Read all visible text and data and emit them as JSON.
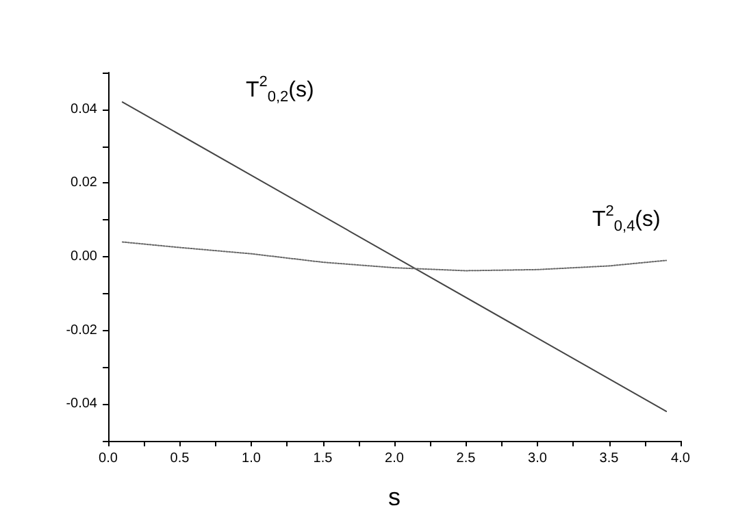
{
  "chart_data": {
    "type": "line",
    "xlabel": "s",
    "xlim": [
      0,
      4
    ],
    "xticks": [
      {
        "value": 0,
        "label": "0.0"
      },
      {
        "value": 0.25,
        "label": null
      },
      {
        "value": 0.5,
        "label": "0.5"
      },
      {
        "value": 0.75,
        "label": null
      },
      {
        "value": 1,
        "label": "1.0"
      },
      {
        "value": 1.25,
        "label": null
      },
      {
        "value": 1.5,
        "label": "1.5"
      },
      {
        "value": 1.75,
        "label": null
      },
      {
        "value": 2,
        "label": "2.0"
      },
      {
        "value": 2.25,
        "label": null
      },
      {
        "value": 2.5,
        "label": "2.5"
      },
      {
        "value": 2.75,
        "label": null
      },
      {
        "value": 3,
        "label": "3.0"
      },
      {
        "value": 3.25,
        "label": null
      },
      {
        "value": 3.5,
        "label": "3.5"
      },
      {
        "value": 3.75,
        "label": null
      },
      {
        "value": 4,
        "label": "4.0"
      }
    ],
    "ylim": [
      -0.05,
      0.05
    ],
    "yticks": [
      {
        "value": -0.05,
        "label": null
      },
      {
        "value": -0.04,
        "label": "-0.04"
      },
      {
        "value": -0.03,
        "label": null
      },
      {
        "value": -0.02,
        "label": "-0.02"
      },
      {
        "value": -0.01,
        "label": null
      },
      {
        "value": 0,
        "label": "0.00"
      },
      {
        "value": 0.01,
        "label": null
      },
      {
        "value": 0.02,
        "label": "0.02"
      },
      {
        "value": 0.03,
        "label": null
      },
      {
        "value": 0.04,
        "label": "0.04"
      },
      {
        "value": 0.05,
        "label": null
      }
    ],
    "grid": false,
    "legend": false,
    "marker": "none",
    "series": [
      {
        "name": "T$^{2}$$_{0,2}$(s)",
        "color": "#444444",
        "line_style": "solid",
        "x": [
          0.1,
          3.9
        ],
        "values": [
          0.042,
          -0.042
        ]
      },
      {
        "name": "T$^{2}$$_{0,4}$(s)",
        "color": "#666666",
        "line_style": "dotted",
        "x": [
          0.1,
          0.5,
          1.0,
          1.5,
          2.0,
          2.5,
          3.0,
          3.5,
          3.9
        ],
        "values": [
          0.004,
          0.0025,
          0.0008,
          -0.0015,
          -0.003,
          -0.0038,
          -0.0035,
          -0.0025,
          -0.001
        ]
      }
    ]
  }
}
